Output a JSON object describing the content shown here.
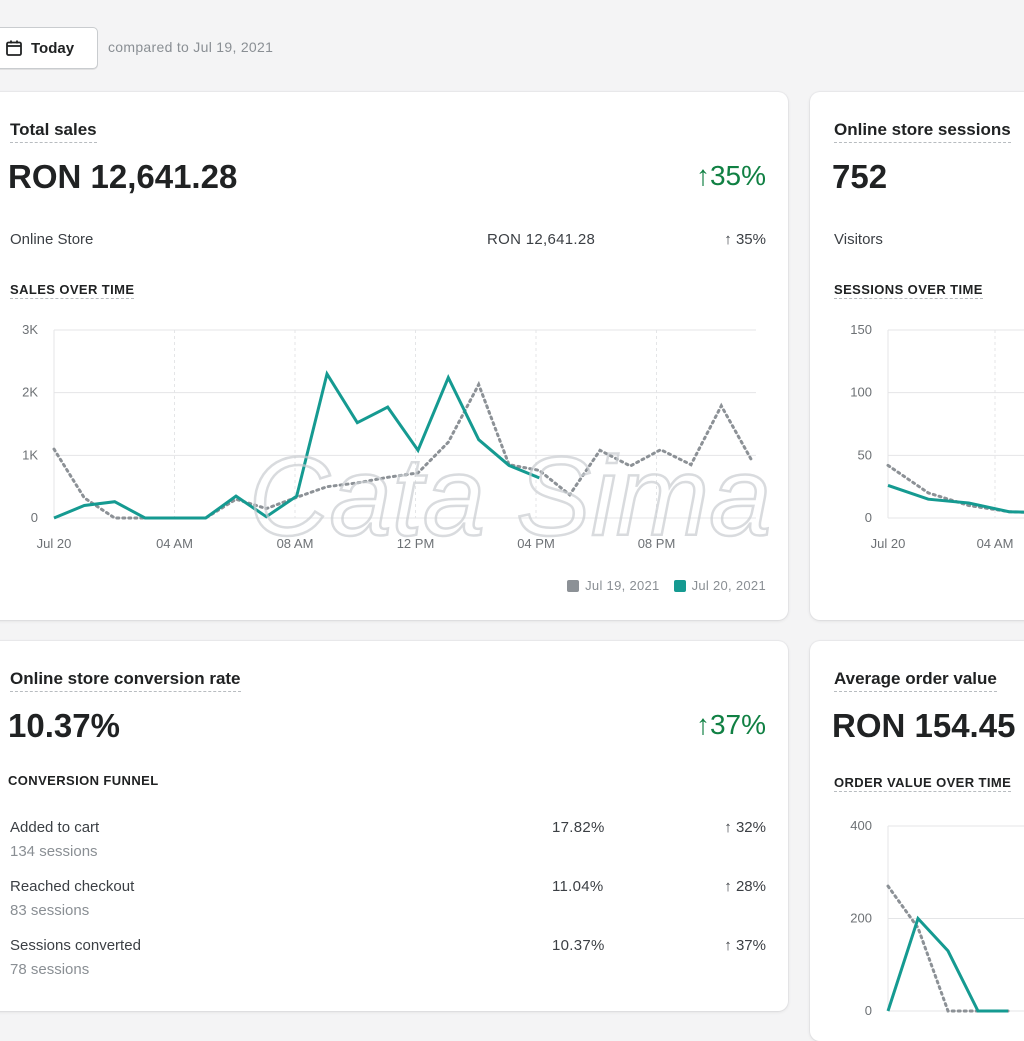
{
  "toolbar": {
    "date_button": "Today",
    "compare_text": "compared to Jul 19, 2021"
  },
  "colors": {
    "current": "#159a91",
    "previous": "#8c9196",
    "positive": "#108043"
  },
  "sales_card": {
    "title": "Total sales",
    "value": "RON 12,641.28",
    "change": "↑35%",
    "row": {
      "label": "Online Store",
      "value": "RON 12,641.28",
      "change": "↑ 35%"
    },
    "section": "SALES OVER TIME",
    "legend": {
      "previous": "Jul 19, 2021",
      "current": "Jul 20, 2021"
    }
  },
  "sessions_card": {
    "title": "Online store sessions",
    "value": "752",
    "row": {
      "label": "Visitors"
    },
    "section": "SESSIONS OVER TIME"
  },
  "conversion_card": {
    "title": "Online store conversion rate",
    "value": "10.37%",
    "change": "↑37%",
    "section": "CONVERSION FUNNEL",
    "rows": [
      {
        "label": "Added to cart",
        "sub": "134 sessions",
        "value": "17.82%",
        "change": "↑ 32%"
      },
      {
        "label": "Reached checkout",
        "sub": "83 sessions",
        "value": "11.04%",
        "change": "↑ 28%"
      },
      {
        "label": "Sessions converted",
        "sub": "78 sessions",
        "value": "10.37%",
        "change": "↑ 37%"
      }
    ]
  },
  "aov_card": {
    "title": "Average order value",
    "value": "RON 154.45",
    "section": "ORDER VALUE OVER TIME"
  },
  "watermark": {
    "text": "Cata Sima"
  },
  "chart_data": [
    {
      "type": "line",
      "title": "SALES OVER TIME",
      "x": [
        0,
        1,
        2,
        3,
        4,
        5,
        6,
        7,
        8,
        9,
        10,
        11,
        12,
        13,
        14,
        15,
        16,
        17,
        18,
        19,
        20,
        21,
        22,
        23
      ],
      "xticks": [
        "Jul 20",
        "04 AM",
        "08 AM",
        "12 PM",
        "04 PM",
        "08 PM"
      ],
      "yticks": [
        "0",
        "1K",
        "2K",
        "3K"
      ],
      "ylim": [
        0,
        3000
      ],
      "series": [
        {
          "name": "Jul 20, 2021",
          "values": [
            0,
            200,
            260,
            0,
            0,
            0,
            350,
            20,
            350,
            2300,
            1520,
            1770,
            1080,
            2240,
            1250,
            840,
            640,
            null,
            null,
            null,
            null,
            null,
            null,
            null
          ]
        },
        {
          "name": "Jul 19, 2021",
          "values": [
            1100,
            320,
            0,
            0,
            0,
            0,
            300,
            150,
            330,
            500,
            560,
            650,
            720,
            1210,
            2130,
            850,
            760,
            370,
            1080,
            830,
            1090,
            850,
            1790,
            920
          ]
        }
      ]
    },
    {
      "type": "line",
      "title": "SESSIONS OVER TIME",
      "x": [
        0,
        1,
        2,
        3,
        4
      ],
      "xticks": [
        "Jul 20",
        "04 AM"
      ],
      "yticks": [
        "0",
        "50",
        "100",
        "150"
      ],
      "ylim": [
        0,
        150
      ],
      "series": [
        {
          "name": "Jul 20, 2021",
          "values": [
            26,
            15,
            12,
            5,
            4
          ]
        },
        {
          "name": "Jul 19, 2021",
          "values": [
            42,
            20,
            10,
            5,
            4
          ]
        }
      ]
    },
    {
      "type": "line",
      "title": "ORDER VALUE OVER TIME",
      "x": [
        0,
        1,
        2,
        3,
        4
      ],
      "yticks": [
        "0",
        "200",
        "400"
      ],
      "ylim": [
        0,
        400
      ],
      "series": [
        {
          "name": "Jul 20, 2021",
          "values": [
            0,
            200,
            130,
            0,
            0
          ]
        },
        {
          "name": "Jul 19, 2021",
          "values": [
            270,
            180,
            0,
            0,
            0
          ]
        }
      ]
    }
  ]
}
